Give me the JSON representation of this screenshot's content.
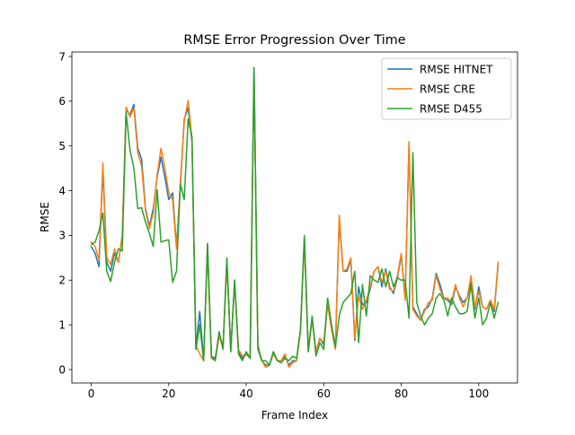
{
  "chart_data": {
    "type": "line",
    "title": "RMSE Error Progression Over Time",
    "xlabel": "Frame Index",
    "ylabel": "RMSE",
    "xlim": [
      -5,
      110
    ],
    "ylim": [
      -0.3,
      7.1
    ],
    "xticks": [
      0,
      20,
      40,
      60,
      80,
      100
    ],
    "yticks": [
      0,
      1,
      2,
      3,
      4,
      5,
      6,
      7
    ],
    "grid": false,
    "legend_position": "top-right",
    "x": [
      0,
      1,
      2,
      3,
      4,
      5,
      6,
      7,
      8,
      9,
      10,
      11,
      12,
      13,
      14,
      15,
      16,
      17,
      18,
      19,
      20,
      21,
      22,
      23,
      24,
      25,
      26,
      27,
      28,
      29,
      30,
      31,
      32,
      33,
      34,
      35,
      36,
      37,
      38,
      39,
      40,
      41,
      42,
      43,
      44,
      45,
      46,
      47,
      48,
      49,
      50,
      51,
      52,
      53,
      54,
      55,
      56,
      57,
      58,
      59,
      60,
      61,
      62,
      63,
      64,
      65,
      66,
      67,
      68,
      69,
      70,
      71,
      72,
      73,
      74,
      75,
      76,
      77,
      78,
      79,
      80,
      81,
      82,
      83,
      84,
      85,
      86,
      87,
      88,
      89,
      90,
      91,
      92,
      93,
      94,
      95,
      96,
      97,
      98,
      99,
      100,
      101,
      102,
      103,
      104,
      105
    ],
    "series": [
      {
        "name": "RMSE HITNET",
        "color": "#1f77b4",
        "values": [
          2.75,
          2.6,
          2.3,
          4.5,
          2.4,
          2.2,
          2.6,
          2.4,
          3.0,
          5.8,
          5.7,
          5.93,
          4.95,
          4.7,
          3.6,
          3.2,
          3.6,
          4.3,
          4.75,
          4.3,
          3.8,
          3.95,
          2.75,
          4.1,
          5.6,
          5.85,
          5.1,
          0.5,
          1.3,
          0.2,
          2.8,
          0.3,
          0.25,
          0.8,
          0.5,
          2.45,
          0.4,
          2.0,
          0.4,
          0.25,
          0.35,
          0.25,
          6.75,
          0.55,
          0.2,
          0.1,
          0.1,
          0.4,
          0.2,
          0.2,
          0.3,
          0.1,
          0.2,
          0.2,
          0.9,
          2.95,
          0.45,
          1.15,
          0.4,
          0.7,
          0.55,
          1.55,
          1.0,
          0.5,
          3.35,
          2.2,
          2.2,
          2.45,
          0.65,
          1.85,
          1.45,
          1.5,
          1.8,
          2.2,
          2.3,
          1.85,
          2.25,
          1.85,
          1.7,
          2.05,
          2.55,
          1.6,
          5.05,
          1.4,
          1.25,
          1.1,
          1.35,
          1.4,
          1.6,
          2.15,
          1.9,
          1.6,
          1.55,
          1.45,
          1.85,
          1.65,
          1.5,
          1.6,
          1.95,
          1.35,
          1.85,
          1.4,
          1.35,
          1.55,
          1.3,
          2.35
        ]
      },
      {
        "name": "RMSE CRE",
        "color": "#ff7f0e",
        "values": [
          2.85,
          2.75,
          2.45,
          4.62,
          2.5,
          2.35,
          2.7,
          2.4,
          3.0,
          5.87,
          5.65,
          5.85,
          4.85,
          4.55,
          3.55,
          3.15,
          3.5,
          4.35,
          4.95,
          4.5,
          3.95,
          3.8,
          2.7,
          4.2,
          5.55,
          6.02,
          5.15,
          0.55,
          0.35,
          0.2,
          2.7,
          0.25,
          0.2,
          0.75,
          0.5,
          2.35,
          0.45,
          1.95,
          0.45,
          0.3,
          0.35,
          0.3,
          6.55,
          0.5,
          0.2,
          0.05,
          0.1,
          0.35,
          0.2,
          0.2,
          0.35,
          0.05,
          0.15,
          0.2,
          0.85,
          2.9,
          0.4,
          1.1,
          0.4,
          0.7,
          0.6,
          1.45,
          0.9,
          0.45,
          3.45,
          2.2,
          2.25,
          2.5,
          0.7,
          1.65,
          1.35,
          1.55,
          1.85,
          2.2,
          2.3,
          1.95,
          2.2,
          1.8,
          1.75,
          2.1,
          2.6,
          1.55,
          5.1,
          1.35,
          1.2,
          1.1,
          1.3,
          1.5,
          1.55,
          2.1,
          1.8,
          1.6,
          1.6,
          1.5,
          1.9,
          1.6,
          1.4,
          1.6,
          2.1,
          1.4,
          1.75,
          1.4,
          1.35,
          1.55,
          1.35,
          2.4
        ]
      },
      {
        "name": "RMSE D455",
        "color": "#2ca02c",
        "values": [
          2.8,
          2.85,
          3.1,
          3.5,
          2.2,
          1.97,
          2.4,
          2.7,
          2.65,
          5.75,
          4.9,
          4.5,
          3.6,
          3.62,
          3.3,
          3.05,
          2.75,
          4.02,
          2.85,
          2.88,
          2.9,
          1.95,
          2.2,
          4.15,
          3.8,
          5.6,
          5.2,
          0.45,
          1.0,
          0.2,
          2.82,
          0.3,
          0.2,
          0.85,
          0.45,
          2.5,
          0.4,
          2.0,
          0.35,
          0.2,
          0.4,
          0.25,
          6.75,
          0.45,
          0.2,
          0.2,
          0.1,
          0.4,
          0.2,
          0.15,
          0.25,
          0.2,
          0.3,
          0.25,
          0.9,
          3.0,
          0.4,
          1.2,
          0.3,
          0.6,
          0.45,
          1.6,
          1.0,
          0.5,
          1.2,
          1.5,
          1.6,
          1.7,
          2.2,
          0.6,
          1.9,
          1.2,
          2.1,
          2.0,
          1.95,
          2.25,
          1.85,
          2.2,
          1.85,
          2.05,
          2.0,
          2.0,
          1.15,
          4.85,
          1.5,
          1.2,
          1.0,
          1.15,
          1.25,
          1.6,
          1.7,
          1.55,
          1.2,
          1.6,
          1.4,
          1.25,
          1.25,
          1.3,
          1.9,
          1.15,
          1.6,
          1.0,
          1.15,
          1.5,
          1.15,
          1.5
        ]
      }
    ]
  }
}
